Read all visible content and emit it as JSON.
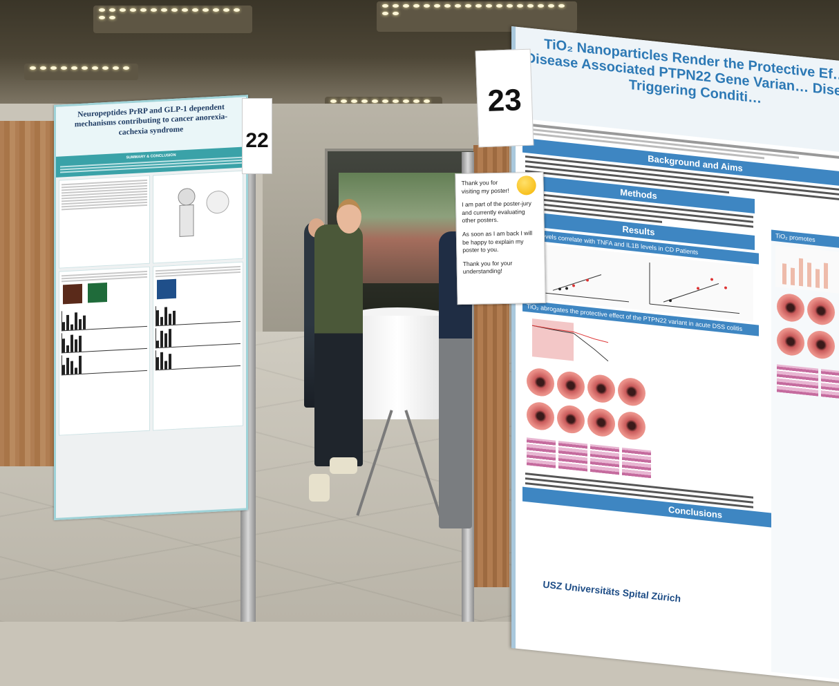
{
  "scene": "poster session",
  "left_poster": {
    "number": "22",
    "title": "Neuropeptides PrRP and GLP-1 dependent mechanisms contributing to cancer anorexia-cachexia syndrome",
    "summary_heading": "SUMMARY & CONCLUSION"
  },
  "right_poster": {
    "number": "23",
    "title": "TiO₂ Nanoparticles Render the Protective Ef… Disease Associated PTPN22 Gene Varian… Disease Triggering Conditi…",
    "sections": {
      "background": "Background and Aims",
      "methods": "Methods",
      "results": "Results",
      "conclusions": "Conclusions"
    },
    "subsections": {
      "results_1": "TiO₂ levels correlate with TNFA and IL1B levels in CD Patients",
      "results_2": "TiO₂ abrogates the protective effect of the PTPN22 variant in acute DSS colitis",
      "right_col": "TiO₂ promotes"
    },
    "logo": "USZ Universitäts Spital Zürich"
  },
  "note": {
    "lines": [
      "Thank you for visiting my poster!",
      "I am part of the poster-jury and currently evaluating other posters.",
      "As soon as I am back I will be happy to explain my poster to you.",
      "Thank you for your understanding!"
    ]
  },
  "colors": {
    "poster_blue": "#3e86c2",
    "poster_teal": "#3aa2a8",
    "wood": "#a87548"
  }
}
